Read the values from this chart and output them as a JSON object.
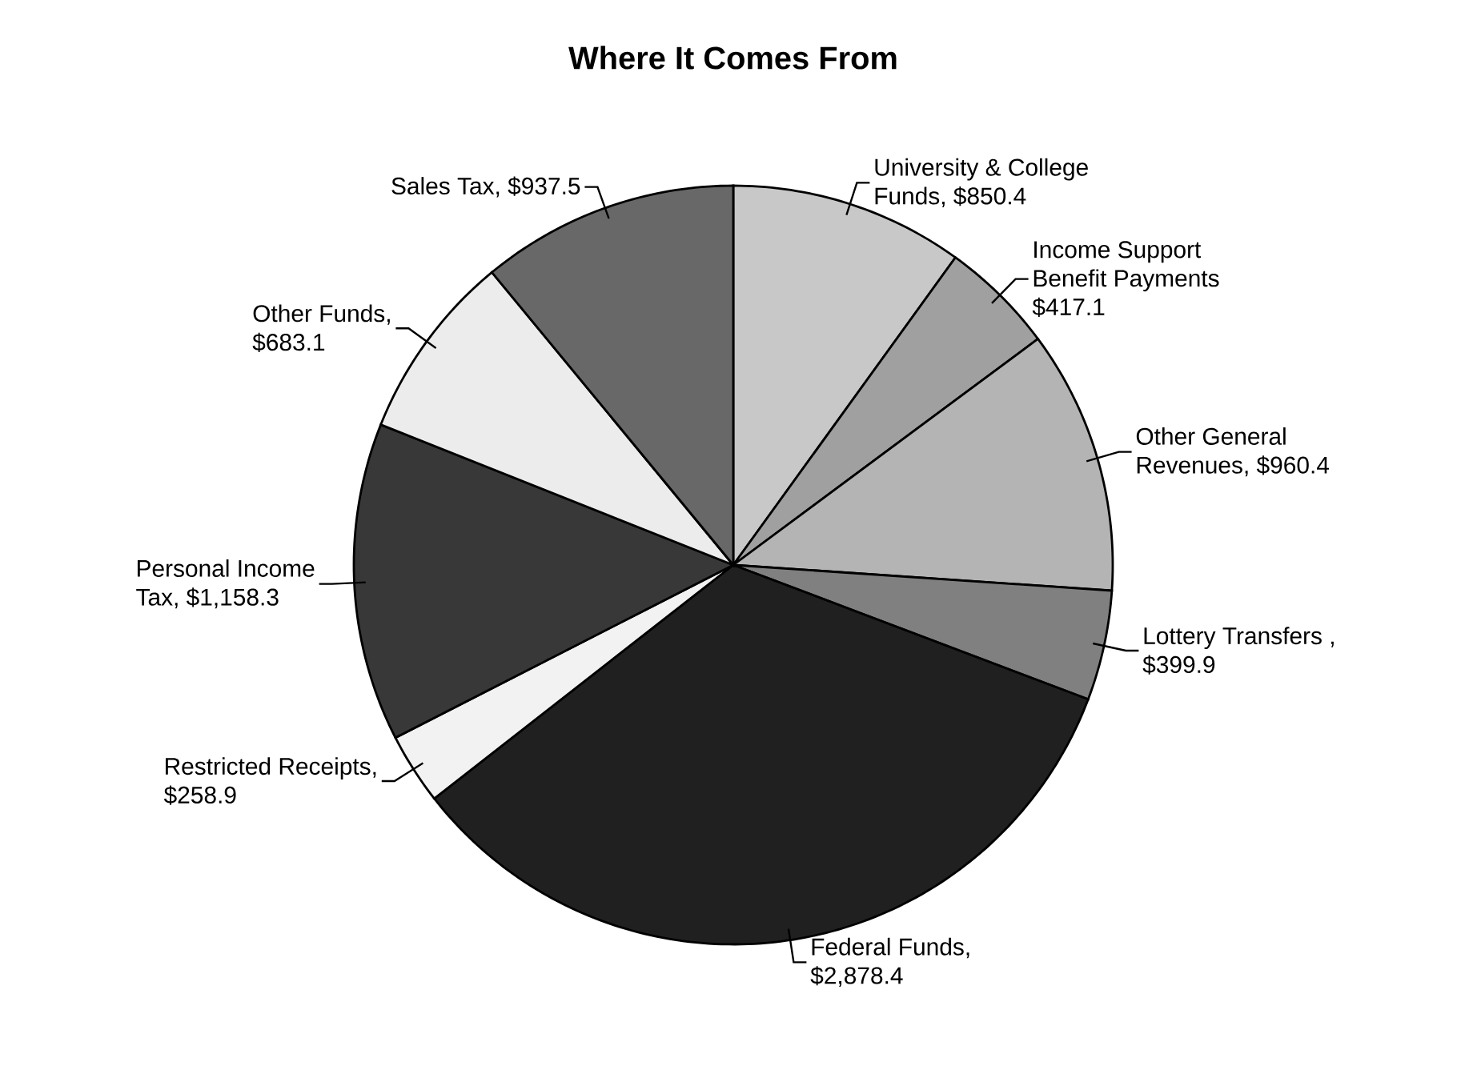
{
  "chart_data": {
    "type": "pie",
    "title": "Where It Comes From",
    "categories": [
      "University & College Funds, $850.4",
      "Income Support Benefit Payments $417.1",
      "Other General Revenues, $960.4",
      "Lottery Transfers , $399.9",
      "Federal Funds, $2,878.4",
      "Restricted Receipts, $258.9",
      "Personal Income Tax, $1,158.3",
      "Other Funds, $683.1",
      "Sales Tax, $937.5"
    ],
    "values": [
      850.4,
      417.1,
      960.4,
      399.9,
      2878.4,
      258.9,
      1158.3,
      683.1,
      937.5
    ],
    "colors": [
      "#c8c8c8",
      "#a0a0a0",
      "#b4b4b4",
      "#808080",
      "#202020",
      "#f2f2f2",
      "#383838",
      "#ececec",
      "#686868"
    ]
  }
}
